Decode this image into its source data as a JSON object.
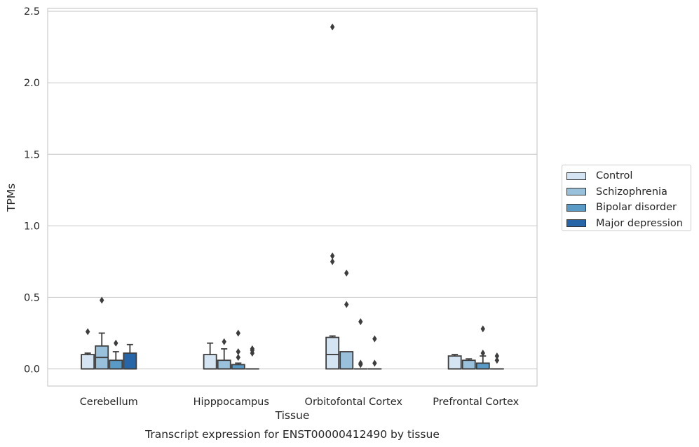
{
  "caption": "Transcript expression for ENST00000412490 by tissue",
  "chart_data": {
    "type": "box",
    "xlabel": "Tissue",
    "ylabel": "TPMs",
    "ylim": [
      -0.12,
      2.52
    ],
    "yticks": [
      0.0,
      0.5,
      1.0,
      1.5,
      2.0,
      2.5
    ],
    "ytick_labels": [
      "0.0",
      "0.5",
      "1.0",
      "1.5",
      "2.0",
      "2.5"
    ],
    "grid": "horizontal",
    "legend_position": "right",
    "categories": [
      "Cerebellum",
      "Hipppocampus",
      "Orbitofontal Cortex",
      "Prefrontal Cortex"
    ],
    "series": [
      {
        "name": "Control",
        "color": "#d4e4f2",
        "boxes": [
          {
            "q1": 0.0,
            "median": 0.0,
            "q3": 0.1,
            "whisker_low": 0.0,
            "whisker_high": 0.11,
            "outliers": [
              0.26
            ]
          },
          {
            "q1": 0.0,
            "median": 0.0,
            "q3": 0.1,
            "whisker_low": 0.0,
            "whisker_high": 0.18,
            "outliers": []
          },
          {
            "q1": 0.0,
            "median": 0.1,
            "q3": 0.22,
            "whisker_low": 0.0,
            "whisker_high": 0.23,
            "outliers": [
              0.75,
              0.79,
              2.39
            ]
          },
          {
            "q1": 0.0,
            "median": 0.0,
            "q3": 0.09,
            "whisker_low": 0.0,
            "whisker_high": 0.1,
            "outliers": []
          }
        ]
      },
      {
        "name": "Schizophrenia",
        "color": "#9ac1dc",
        "boxes": [
          {
            "q1": 0.0,
            "median": 0.08,
            "q3": 0.16,
            "whisker_low": 0.0,
            "whisker_high": 0.25,
            "outliers": [
              0.48
            ]
          },
          {
            "q1": 0.0,
            "median": 0.0,
            "q3": 0.06,
            "whisker_low": 0.0,
            "whisker_high": 0.14,
            "outliers": [
              0.19
            ]
          },
          {
            "q1": 0.0,
            "median": 0.0,
            "q3": 0.12,
            "whisker_low": 0.0,
            "whisker_high": 0.12,
            "outliers": [
              0.45,
              0.67
            ]
          },
          {
            "q1": 0.0,
            "median": 0.0,
            "q3": 0.06,
            "whisker_low": 0.0,
            "whisker_high": 0.07,
            "outliers": []
          }
        ]
      },
      {
        "name": "Bipolar disorder",
        "color": "#5a9ac7",
        "boxes": [
          {
            "q1": 0.0,
            "median": 0.0,
            "q3": 0.06,
            "whisker_low": 0.0,
            "whisker_high": 0.12,
            "outliers": [
              0.18
            ]
          },
          {
            "q1": 0.0,
            "median": 0.0,
            "q3": 0.03,
            "whisker_low": 0.0,
            "whisker_high": 0.04,
            "outliers": [
              0.08,
              0.12,
              0.25
            ]
          },
          {
            "q1": 0.0,
            "median": 0.0,
            "q3": 0.0,
            "whisker_low": 0.0,
            "whisker_high": 0.0,
            "outliers": [
              0.03,
              0.04,
              0.33
            ]
          },
          {
            "q1": 0.0,
            "median": 0.0,
            "q3": 0.04,
            "whisker_low": 0.0,
            "whisker_high": 0.09,
            "outliers": [
              0.11,
              0.28
            ]
          }
        ]
      },
      {
        "name": "Major depression",
        "color": "#2765a9",
        "boxes": [
          {
            "q1": 0.0,
            "median": 0.0,
            "q3": 0.11,
            "whisker_low": 0.0,
            "whisker_high": 0.17,
            "outliers": []
          },
          {
            "q1": 0.0,
            "median": 0.0,
            "q3": 0.0,
            "whisker_low": 0.0,
            "whisker_high": 0.0,
            "outliers": [
              0.11,
              0.13,
              0.14
            ]
          },
          {
            "q1": 0.0,
            "median": 0.0,
            "q3": 0.0,
            "whisker_low": 0.0,
            "whisker_high": 0.0,
            "outliers": [
              0.04,
              0.21
            ]
          },
          {
            "q1": 0.0,
            "median": 0.0,
            "q3": 0.0,
            "whisker_low": 0.0,
            "whisker_high": 0.0,
            "outliers": [
              0.06,
              0.09
            ]
          }
        ]
      }
    ]
  }
}
